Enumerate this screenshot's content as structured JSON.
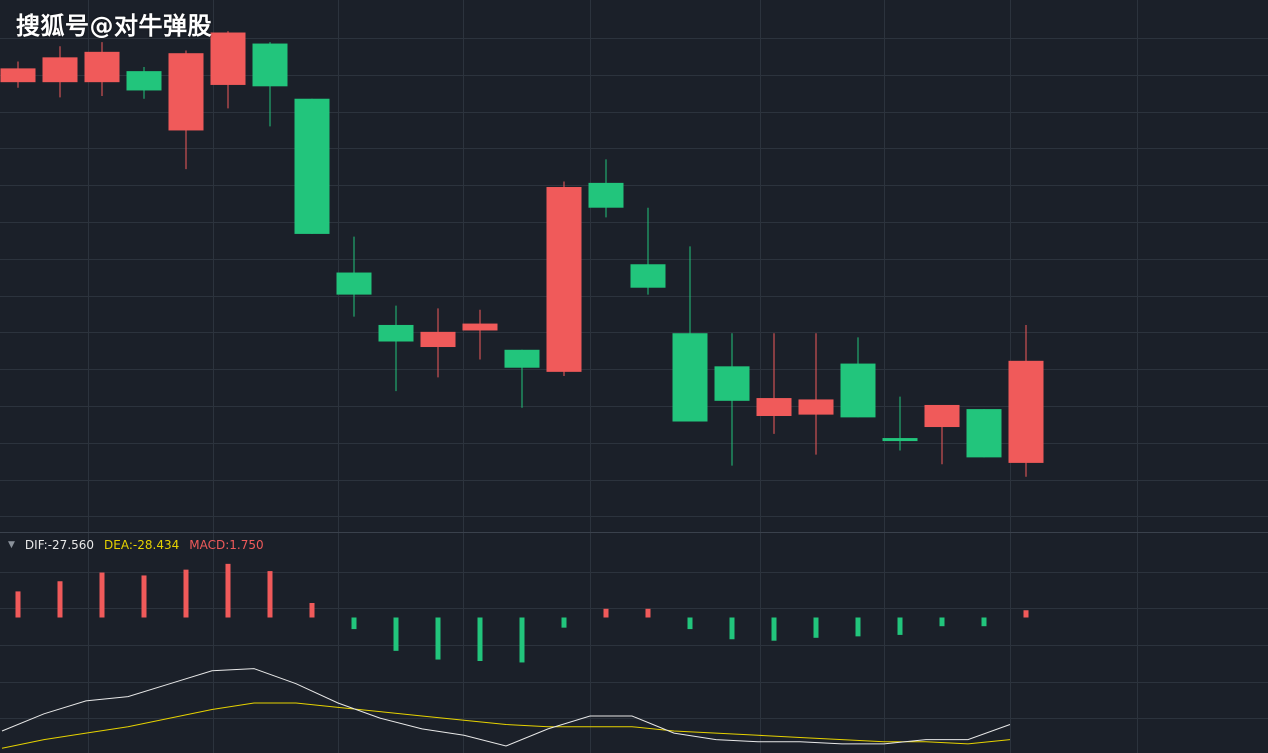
{
  "watermark": "搜狐号@对牛弹股",
  "indicator": {
    "dropdown_icon": "▼",
    "dif_label": "DIF:-27.560",
    "dea_label": "DEA:-28.434",
    "macd_label": "MACD:1.750"
  },
  "colors": {
    "background": "#1b2029",
    "grid": "#2c333d",
    "up": "#f05a5a",
    "down": "#22c57c",
    "dif_line": "#e8e8e8",
    "dea_line": "#e6d200"
  },
  "chart_data": [
    {
      "type": "candlestick",
      "title": "",
      "grid": true,
      "candles": [
        {
          "i": 0,
          "open": 90.0,
          "close": 95.0,
          "high": 97.5,
          "low": 88.0
        },
        {
          "i": 1,
          "open": 90.0,
          "close": 99.0,
          "high": 103.0,
          "low": 84.5
        },
        {
          "i": 2,
          "open": 90.0,
          "close": 101.0,
          "high": 104.5,
          "low": 85.0
        },
        {
          "i": 3,
          "open": 94.0,
          "close": 87.0,
          "high": 95.5,
          "low": 84.0
        },
        {
          "i": 4,
          "open": 72.5,
          "close": 100.5,
          "high": 101.5,
          "low": 58.5
        },
        {
          "i": 5,
          "open": 89.0,
          "close": 108.0,
          "high": 108.5,
          "low": 80.5
        },
        {
          "i": 6,
          "open": 104.0,
          "close": 88.5,
          "high": 104.5,
          "low": 74.0
        },
        {
          "i": 7,
          "open": 84.0,
          "close": 35.0,
          "high": 84.0,
          "low": 35.0
        },
        {
          "i": 8,
          "open": 21.0,
          "close": 13.0,
          "high": 34.0,
          "low": 5.0
        },
        {
          "i": 9,
          "open": 2.0,
          "close": -4.0,
          "high": 9.0,
          "low": -22.0
        },
        {
          "i": 10,
          "open": -6.0,
          "close": -0.5,
          "high": 8.0,
          "low": -17.0
        },
        {
          "i": 11,
          "open": 0.0,
          "close": 2.5,
          "high": 7.5,
          "low": -10.5
        },
        {
          "i": 12,
          "open": -7.0,
          "close": -13.5,
          "high": -7.0,
          "low": -28.0
        },
        {
          "i": 13,
          "open": -15.0,
          "close": 52.0,
          "high": 54.0,
          "low": -16.5
        },
        {
          "i": 14,
          "open": 53.5,
          "close": 44.5,
          "high": 62.0,
          "low": 41.0
        },
        {
          "i": 15,
          "open": 24.0,
          "close": 15.5,
          "high": 44.5,
          "low": 13.0
        },
        {
          "i": 16,
          "open": -1.0,
          "close": -33.0,
          "high": 30.5,
          "low": -33.0
        },
        {
          "i": 17,
          "open": -13.0,
          "close": -25.5,
          "high": -1.0,
          "low": -49.0
        },
        {
          "i": 18,
          "open": -31.0,
          "close": -24.5,
          "high": -1.0,
          "low": -37.5
        },
        {
          "i": 19,
          "open": -30.5,
          "close": -25.0,
          "high": -1.0,
          "low": -45.0
        },
        {
          "i": 20,
          "open": -12.0,
          "close": -31.5,
          "high": -2.5,
          "low": -31.5
        },
        {
          "i": 21,
          "open": -39.0,
          "close": -40.0,
          "high": -24.0,
          "low": -43.5
        },
        {
          "i": 22,
          "open": -35.0,
          "close": -27.0,
          "high": -27.0,
          "low": -48.5
        },
        {
          "i": 23,
          "open": -28.5,
          "close": -46.0,
          "high": -28.5,
          "low": -46.0
        },
        {
          "i": 24,
          "open": -48.0,
          "close": -11.0,
          "high": 2.0,
          "low": -53.0
        }
      ]
    },
    {
      "type": "bar",
      "title": "MACD",
      "grid": true,
      "macd_hist": [
        9,
        12.5,
        15.5,
        14.5,
        16.5,
        18.5,
        16,
        5,
        -4,
        -11.5,
        -14.5,
        -15,
        -15.5,
        -3.5,
        3,
        3,
        -4,
        -7.5,
        -8,
        -7,
        -6.5,
        -6,
        -3,
        -3,
        2.5
      ],
      "dif": [
        -20,
        -16,
        -13,
        -12,
        -9,
        -6,
        -5.5,
        -9,
        -13.5,
        -17,
        -19.5,
        -21,
        -23.5,
        -19.5,
        -16.5,
        -16.5,
        -20.5,
        -22,
        -22.5,
        -22.5,
        -23,
        -23,
        -22,
        -22,
        -18.5
      ],
      "dea": [
        -24,
        -22,
        -20.5,
        -19,
        -17,
        -15,
        -13.5,
        -13.5,
        -14.5,
        -15.5,
        -16.5,
        -17.5,
        -18.5,
        -19,
        -19,
        -19,
        -20,
        -20.5,
        -21,
        -21.5,
        -22,
        -22.5,
        -22.5,
        -23,
        -22
      ]
    }
  ]
}
